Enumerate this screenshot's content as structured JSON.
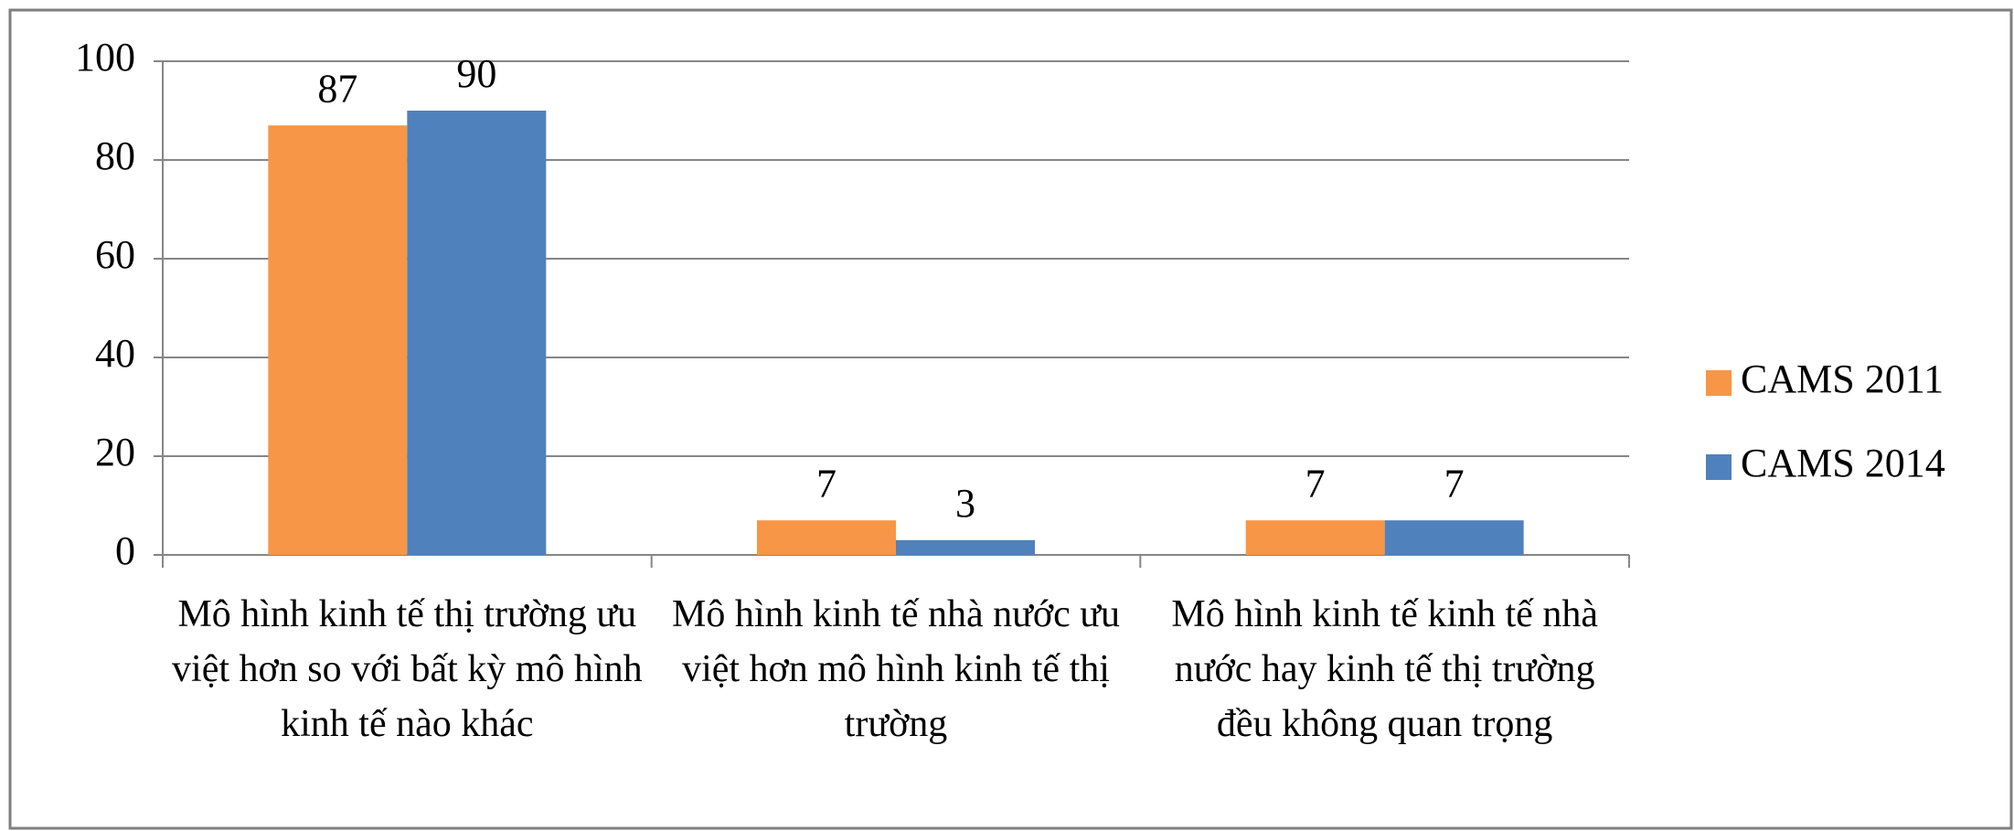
{
  "chart_data": {
    "type": "bar",
    "categories": [
      "Mô hình kinh tế thị trường ưu việt hơn so với bất kỳ mô hình kinh tế nào khác",
      "Mô hình kinh tế nhà nước ưu việt hơn mô hình kinh tế thị trường",
      "Mô hình kinh tế kinh tế nhà nước hay kinh tế thị trường đều không quan trọng"
    ],
    "series": [
      {
        "name": "CAMS 2011",
        "color": "#f79646",
        "values": [
          87,
          7,
          7
        ]
      },
      {
        "name": "CAMS 2014",
        "color": "#4f81bd",
        "values": [
          90,
          3,
          7
        ]
      }
    ],
    "ylim": [
      0,
      100
    ],
    "yticks": [
      0,
      20,
      40,
      60,
      80,
      100
    ],
    "grid": true,
    "legend": "right"
  }
}
